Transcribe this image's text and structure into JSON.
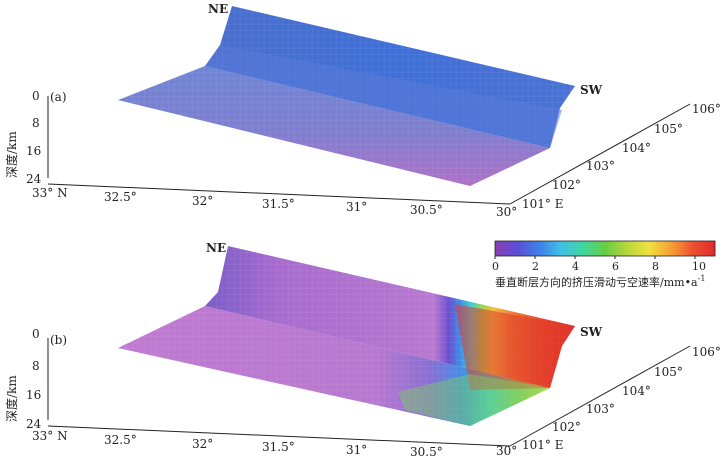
{
  "colorbar": {
    "ticks": [
      "0",
      "2",
      "4",
      "6",
      "8",
      "10"
    ],
    "range": [
      0,
      11
    ],
    "label": "垂直断层方向的挤压滑动亏空速率/mm•a",
    "label_sup": "-1",
    "colors": [
      "#8a3fb0",
      "#5b4fd6",
      "#3f7fe8",
      "#3fc0e8",
      "#3fd6a0",
      "#66cc44",
      "#b8d63a",
      "#f0e040",
      "#f5a033",
      "#ee5030",
      "#e02a2a"
    ]
  },
  "chart_data": {
    "type": "3d-surface",
    "x_axis": {
      "label": "",
      "ticks": [
        "33° N",
        "32.5°",
        "32°",
        "31.5°",
        "31°",
        "30.5°",
        "30°"
      ],
      "range_deg_N": [
        33,
        30
      ]
    },
    "y_axis": {
      "label": "",
      "ticks": [
        "101° E",
        "102°",
        "103°",
        "104°",
        "105°",
        "106°"
      ],
      "range_deg_E": [
        101,
        106
      ]
    },
    "z_axis": {
      "label": "深度/km",
      "ticks": [
        "0",
        "8",
        "16",
        "24"
      ],
      "range_km": [
        0,
        24
      ]
    },
    "colorbar_range": [
      0,
      11
    ],
    "panels": [
      {
        "id": "a",
        "label": "(a)",
        "ne_label": "NE",
        "sw_label": "SW",
        "description": "uniform low rate across fault plane",
        "rate_range_mm_per_a": [
          0,
          1.5
        ]
      },
      {
        "id": "b",
        "label": "(b)",
        "ne_label": "NE",
        "sw_label": "SW",
        "description": "high rate on southwest segment",
        "rate_range_mm_per_a": [
          0,
          11
        ]
      }
    ]
  }
}
